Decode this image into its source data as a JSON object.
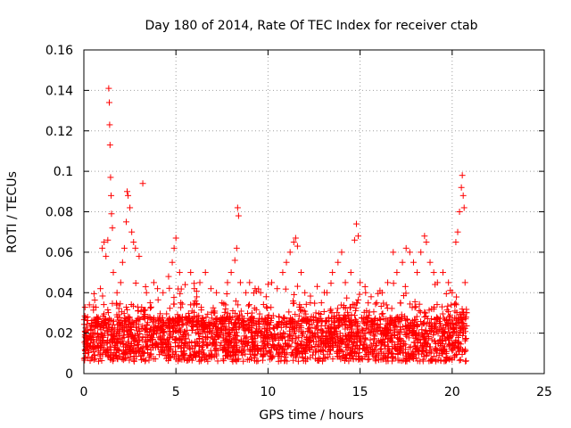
{
  "chart_data": {
    "type": "scatter",
    "title": "Day 180 of 2014, Rate Of TEC Index for receiver ctab",
    "xlabel": "GPS time / hours",
    "ylabel": "ROTI / TECUs",
    "xlim": [
      0,
      25
    ],
    "ylim": [
      0,
      0.16
    ],
    "x_ticks": [
      0,
      5,
      10,
      15,
      20,
      25
    ],
    "x_tick_labels": [
      "0",
      "5",
      "10",
      "15",
      "20",
      "25"
    ],
    "y_ticks": [
      0,
      0.02,
      0.04,
      0.06,
      0.08,
      0.1,
      0.12,
      0.14,
      0.16
    ],
    "y_tick_labels": [
      "0",
      "0.02",
      "0.04",
      "0.06",
      "0.08",
      "0.1",
      "0.12",
      "0.14",
      "0.16"
    ],
    "grid": true,
    "marker": "+",
    "color": "#ff0000",
    "series": [
      {
        "name": "ROTI",
        "points": [
          [
            0.1,
            0.021
          ],
          [
            0.2,
            0.028
          ],
          [
            0.3,
            0.034
          ],
          [
            0.5,
            0.018
          ],
          [
            0.7,
            0.025
          ],
          [
            0.9,
            0.042
          ],
          [
            1.0,
            0.062
          ],
          [
            1.1,
            0.065
          ],
          [
            1.2,
            0.058
          ],
          [
            1.3,
            0.066
          ],
          [
            1.35,
            0.141
          ],
          [
            1.38,
            0.134
          ],
          [
            1.4,
            0.123
          ],
          [
            1.42,
            0.113
          ],
          [
            1.45,
            0.097
          ],
          [
            1.48,
            0.088
          ],
          [
            1.5,
            0.079
          ],
          [
            1.55,
            0.072
          ],
          [
            1.6,
            0.05
          ],
          [
            1.8,
            0.04
          ],
          [
            2.0,
            0.045
          ],
          [
            2.1,
            0.055
          ],
          [
            2.2,
            0.062
          ],
          [
            2.3,
            0.075
          ],
          [
            2.35,
            0.09
          ],
          [
            2.4,
            0.088
          ],
          [
            2.5,
            0.082
          ],
          [
            2.6,
            0.07
          ],
          [
            2.7,
            0.065
          ],
          [
            2.8,
            0.062
          ],
          [
            3.0,
            0.058
          ],
          [
            3.2,
            0.094
          ],
          [
            3.4,
            0.04
          ],
          [
            3.6,
            0.035
          ],
          [
            3.8,
            0.045
          ],
          [
            4.0,
            0.042
          ],
          [
            4.3,
            0.04
          ],
          [
            4.6,
            0.048
          ],
          [
            4.8,
            0.055
          ],
          [
            4.9,
            0.062
          ],
          [
            5.0,
            0.067
          ],
          [
            5.2,
            0.05
          ],
          [
            5.5,
            0.044
          ],
          [
            5.8,
            0.05
          ],
          [
            6.0,
            0.042
          ],
          [
            6.3,
            0.045
          ],
          [
            6.6,
            0.05
          ],
          [
            6.9,
            0.042
          ],
          [
            7.2,
            0.04
          ],
          [
            7.5,
            0.035
          ],
          [
            7.8,
            0.045
          ],
          [
            8.0,
            0.05
          ],
          [
            8.2,
            0.056
          ],
          [
            8.3,
            0.062
          ],
          [
            8.35,
            0.082
          ],
          [
            8.4,
            0.078
          ],
          [
            8.5,
            0.045
          ],
          [
            8.8,
            0.04
          ],
          [
            9.0,
            0.045
          ],
          [
            9.3,
            0.042
          ],
          [
            9.6,
            0.04
          ],
          [
            9.9,
            0.038
          ],
          [
            10.2,
            0.045
          ],
          [
            10.5,
            0.042
          ],
          [
            10.8,
            0.05
          ],
          [
            11.0,
            0.055
          ],
          [
            11.2,
            0.06
          ],
          [
            11.4,
            0.065
          ],
          [
            11.5,
            0.067
          ],
          [
            11.6,
            0.063
          ],
          [
            11.8,
            0.05
          ],
          [
            12.0,
            0.04
          ],
          [
            12.3,
            0.035
          ],
          [
            12.6,
            0.03
          ],
          [
            12.9,
            0.035
          ],
          [
            13.2,
            0.04
          ],
          [
            13.5,
            0.05
          ],
          [
            13.8,
            0.055
          ],
          [
            14.0,
            0.06
          ],
          [
            14.2,
            0.045
          ],
          [
            14.5,
            0.05
          ],
          [
            14.7,
            0.066
          ],
          [
            14.8,
            0.074
          ],
          [
            14.9,
            0.068
          ],
          [
            15.0,
            0.045
          ],
          [
            15.3,
            0.04
          ],
          [
            15.6,
            0.038
          ],
          [
            15.9,
            0.035
          ],
          [
            16.2,
            0.04
          ],
          [
            16.5,
            0.045
          ],
          [
            16.8,
            0.06
          ],
          [
            17.0,
            0.05
          ],
          [
            17.3,
            0.055
          ],
          [
            17.5,
            0.062
          ],
          [
            17.7,
            0.06
          ],
          [
            17.9,
            0.055
          ],
          [
            18.1,
            0.05
          ],
          [
            18.3,
            0.06
          ],
          [
            18.5,
            0.068
          ],
          [
            18.6,
            0.065
          ],
          [
            18.8,
            0.055
          ],
          [
            19.0,
            0.05
          ],
          [
            19.2,
            0.045
          ],
          [
            19.5,
            0.05
          ],
          [
            19.8,
            0.045
          ],
          [
            20.0,
            0.04
          ],
          [
            20.2,
            0.065
          ],
          [
            20.3,
            0.07
          ],
          [
            20.4,
            0.08
          ],
          [
            20.5,
            0.092
          ],
          [
            20.55,
            0.098
          ],
          [
            20.6,
            0.088
          ],
          [
            20.65,
            0.082
          ],
          [
            20.7,
            0.045
          ]
        ]
      }
    ],
    "background_band": {
      "x_range": [
        0,
        20.8
      ],
      "baseline_min": 0.006,
      "baseline_max": 0.04
    }
  }
}
